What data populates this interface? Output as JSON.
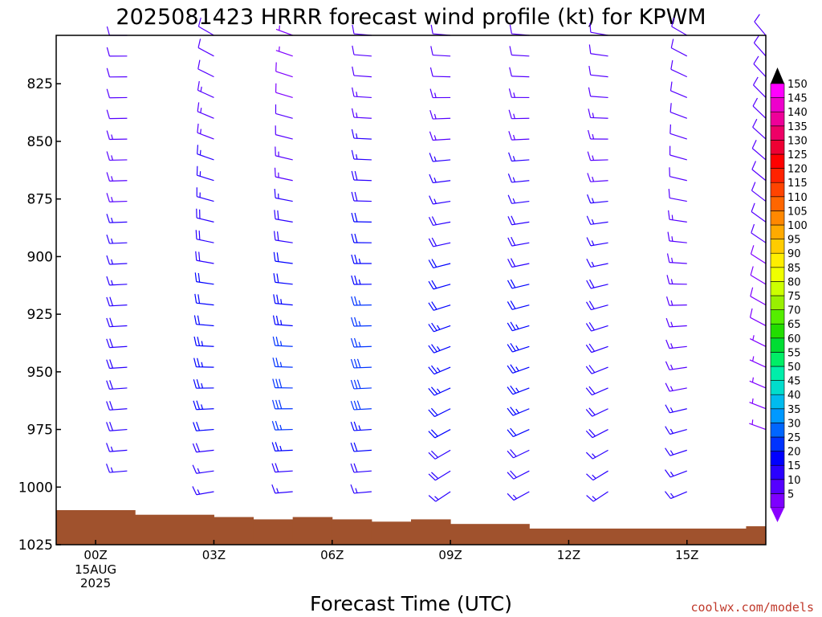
{
  "chart_data": {
    "type": "wind-barb-timeseries",
    "title": "2025081423 HRRR forecast wind profile (kt) for KPWM",
    "xlabel": "Forecast Time (UTC)",
    "credit": "coolwx.com/models",
    "y_axis": {
      "units": "hPa",
      "ticks": [
        825,
        850,
        875,
        900,
        925,
        950,
        975,
        1000,
        1025
      ],
      "range": [
        804,
        1025
      ]
    },
    "x_axis": {
      "range_hours": [
        -1,
        17
      ],
      "ticks": [
        {
          "hour": 0,
          "label": "00Z",
          "sub": [
            "15AUG",
            "2025"
          ]
        },
        {
          "hour": 3,
          "label": "03Z"
        },
        {
          "hour": 6,
          "label": "06Z"
        },
        {
          "hour": 9,
          "label": "09Z"
        },
        {
          "hour": 12,
          "label": "12Z"
        },
        {
          "hour": 15,
          "label": "15Z"
        }
      ]
    },
    "colorbar": {
      "labels": [
        5,
        10,
        15,
        20,
        25,
        30,
        35,
        40,
        45,
        50,
        55,
        60,
        65,
        70,
        75,
        80,
        85,
        90,
        95,
        100,
        105,
        110,
        115,
        120,
        125,
        130,
        135,
        140,
        145,
        150
      ],
      "colors": [
        "#7e00ff",
        "#5500ff",
        "#2a00ff",
        "#0000ff",
        "#0033ff",
        "#0066ff",
        "#0099ff",
        "#00bbee",
        "#00ddcc",
        "#00eeaa",
        "#00ee66",
        "#00dd33",
        "#22dd00",
        "#55ee00",
        "#99f000",
        "#ccff00",
        "#f0ff00",
        "#ffee00",
        "#ffcc00",
        "#ffaa00",
        "#ff8800",
        "#ff6600",
        "#ff4400",
        "#ff2200",
        "#ff0000",
        "#ee0033",
        "#ee0066",
        "#ee0099",
        "#ee00cc",
        "#ff00ff"
      ],
      "top_color": "#000000",
      "bottom_color": "#8a00ff"
    },
    "surface_pressure": [
      {
        "from": -1,
        "to": 1,
        "p": 1010
      },
      {
        "from": 1,
        "to": 3,
        "p": 1012
      },
      {
        "from": 3,
        "to": 4,
        "p": 1013
      },
      {
        "from": 4,
        "to": 5,
        "p": 1014
      },
      {
        "from": 5,
        "to": 6,
        "p": 1013
      },
      {
        "from": 6,
        "to": 7,
        "p": 1014
      },
      {
        "from": 7,
        "to": 8,
        "p": 1015
      },
      {
        "from": 8,
        "to": 9,
        "p": 1014
      },
      {
        "from": 9,
        "to": 11,
        "p": 1016
      },
      {
        "from": 11,
        "to": 16.5,
        "p": 1018
      },
      {
        "from": 16.5,
        "to": 17,
        "p": 1017
      }
    ],
    "wind_profiles": [
      {
        "hour": 0.8,
        "p_min": 804,
        "p_max": 1001,
        "dir_top": 270,
        "dir_bot": 265,
        "spd_top": 10,
        "spd_bot": 15,
        "spd_peak": 20,
        "peak_p": 950
      },
      {
        "hour": 3.0,
        "p_min": 804,
        "p_max": 1003,
        "dir_top": 300,
        "dir_bot": 260,
        "spd_top": 10,
        "spd_bot": 15,
        "spd_peak": 25,
        "peak_p": 960
      },
      {
        "hour": 5.0,
        "p_min": 804,
        "p_max": 1003,
        "dir_top": 290,
        "dir_bot": 265,
        "spd_top": 5,
        "spd_bot": 15,
        "spd_peak": 30,
        "peak_p": 965
      },
      {
        "hour": 7.0,
        "p_min": 804,
        "p_max": 1003,
        "dir_top": 275,
        "dir_bot": 265,
        "spd_top": 10,
        "spd_bot": 15,
        "spd_peak": 30,
        "peak_p": 960
      },
      {
        "hour": 9.0,
        "p_min": 804,
        "p_max": 1010,
        "dir_top": 275,
        "dir_bot": 235,
        "spd_top": 10,
        "spd_bot": 15,
        "spd_peak": 25,
        "peak_p": 950
      },
      {
        "hour": 11.0,
        "p_min": 804,
        "p_max": 1010,
        "dir_top": 275,
        "dir_bot": 240,
        "spd_top": 10,
        "spd_bot": 15,
        "spd_peak": 25,
        "peak_p": 955
      },
      {
        "hour": 13.0,
        "p_min": 804,
        "p_max": 1010,
        "dir_top": 280,
        "dir_bot": 235,
        "spd_top": 10,
        "spd_bot": 15,
        "spd_peak": 20,
        "peak_p": 945
      },
      {
        "hour": 15.0,
        "p_min": 804,
        "p_max": 1010,
        "dir_top": 300,
        "dir_bot": 245,
        "spd_top": 10,
        "spd_bot": 15,
        "spd_peak": 15,
        "peak_p": 960
      },
      {
        "hour": 17.0,
        "p_min": 804,
        "p_max": 975,
        "dir_top": 320,
        "dir_bot": 290,
        "spd_top": 10,
        "spd_bot": 5,
        "spd_peak": 10,
        "peak_p": 900
      }
    ]
  }
}
